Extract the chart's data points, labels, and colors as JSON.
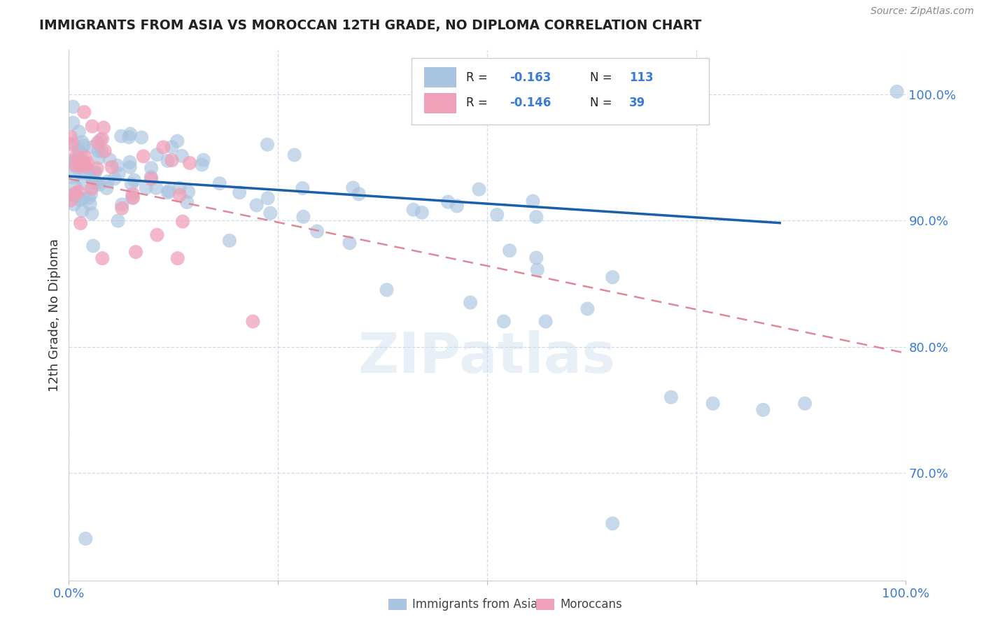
{
  "title": "IMMIGRANTS FROM ASIA VS MOROCCAN 12TH GRADE, NO DIPLOMA CORRELATION CHART",
  "source": "Source: ZipAtlas.com",
  "ylabel_label": "12th Grade, No Diploma",
  "xmin": 0.0,
  "xmax": 1.0,
  "ymin": 0.615,
  "ymax": 1.035,
  "yticks": [
    0.7,
    0.8,
    0.9,
    1.0
  ],
  "ytick_labels": [
    "70.0%",
    "80.0%",
    "90.0%",
    "100.0%"
  ],
  "blue_R": -0.163,
  "blue_N": 113,
  "pink_R": -0.146,
  "pink_N": 39,
  "blue_color": "#a8c4e0",
  "pink_color": "#f0a0b8",
  "blue_line_color": "#1a5fa8",
  "pink_line_color": "#e08898",
  "legend_blue_label": "Immigrants from Asia",
  "legend_pink_label": "Moroccans",
  "blue_line_x0": 0.0,
  "blue_line_y0": 0.935,
  "blue_line_x1": 0.85,
  "blue_line_y1": 0.898,
  "pink_line_x0": 0.0,
  "pink_line_y0": 0.933,
  "pink_line_x1": 1.0,
  "pink_line_y1": 0.795
}
